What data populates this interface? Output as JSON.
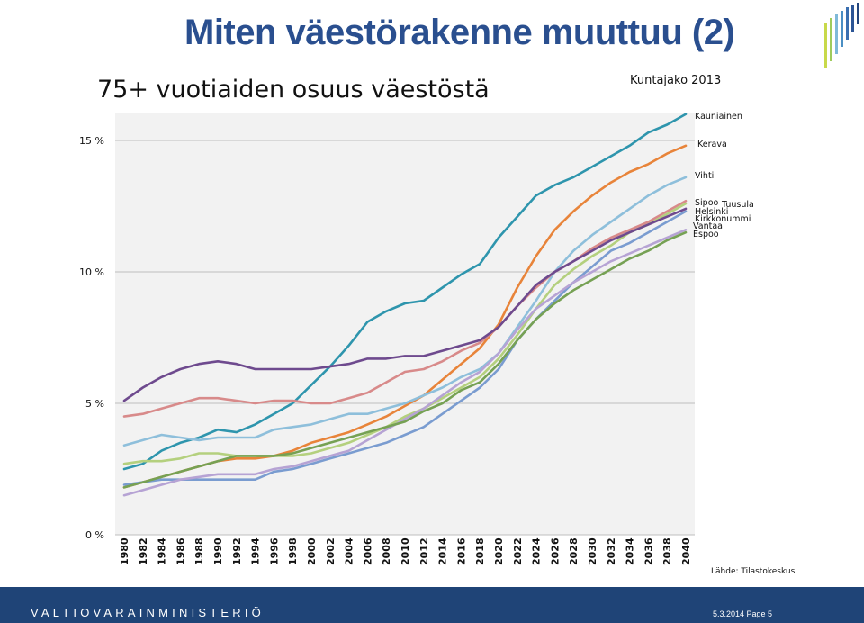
{
  "slide": {
    "title": "Miten väestörakenne muuttuu (2)",
    "source": "Lähde: Tilastokeskus",
    "footer_left": "VALTIOVARAINMINISTERIÖ",
    "footer_right": "5.3.2014 Page 5",
    "footer_color": "#1f4477",
    "title_color": "#2a4f8f"
  },
  "chart_data": {
    "type": "line",
    "title": "75+ vuotiaiden osuus väestöstä",
    "subtitle": "Kuntajako 2013",
    "xlabel": "",
    "ylabel": "",
    "ylim": [
      0,
      16
    ],
    "yticks": [
      {
        "value": 0,
        "label": "0 %"
      },
      {
        "value": 5,
        "label": "5 %"
      },
      {
        "value": 10,
        "label": "10 %"
      },
      {
        "value": 15,
        "label": "15 %"
      }
    ],
    "grid": true,
    "x": [
      1980,
      1982,
      1984,
      1986,
      1988,
      1990,
      1992,
      1994,
      1996,
      1998,
      2000,
      2002,
      2004,
      2006,
      2008,
      2010,
      2012,
      2014,
      2016,
      2018,
      2020,
      2022,
      2024,
      2026,
      2028,
      2030,
      2032,
      2034,
      2036,
      2038,
      2040
    ],
    "series": [
      {
        "name": "Kauniainen",
        "color": "#2e95ad",
        "values": [
          2.5,
          2.7,
          3.2,
          3.5,
          3.7,
          4.0,
          3.9,
          4.2,
          4.6,
          5.0,
          5.7,
          6.4,
          7.2,
          8.1,
          8.5,
          8.8,
          8.9,
          9.4,
          9.9,
          10.3,
          11.3,
          12.1,
          12.9,
          13.3,
          13.6,
          14.0,
          14.4,
          14.8,
          15.3,
          15.6,
          16.0
        ]
      },
      {
        "name": "Kerava",
        "color": "#e8843a",
        "values": [
          1.8,
          2.0,
          2.2,
          2.4,
          2.6,
          2.8,
          2.9,
          2.9,
          3.0,
          3.2,
          3.5,
          3.7,
          3.9,
          4.2,
          4.5,
          4.9,
          5.3,
          5.9,
          6.5,
          7.1,
          8.0,
          9.4,
          10.6,
          11.6,
          12.3,
          12.9,
          13.4,
          13.8,
          14.1,
          14.5,
          14.8
        ]
      },
      {
        "name": "Vihti",
        "color": "#8ebfdb",
        "values": [
          3.4,
          3.6,
          3.8,
          3.7,
          3.6,
          3.7,
          3.7,
          3.7,
          4.0,
          4.1,
          4.2,
          4.4,
          4.6,
          4.6,
          4.8,
          5.0,
          5.3,
          5.6,
          6.0,
          6.3,
          6.9,
          7.9,
          8.9,
          10.0,
          10.8,
          11.4,
          11.9,
          12.4,
          12.9,
          13.3,
          13.6
        ]
      },
      {
        "name": "Sipoo",
        "color": "#d88a8a",
        "values": [
          4.5,
          4.6,
          4.8,
          5.0,
          5.2,
          5.2,
          5.1,
          5.0,
          5.1,
          5.1,
          5.0,
          5.0,
          5.2,
          5.4,
          5.8,
          6.2,
          6.3,
          6.6,
          7.0,
          7.3,
          7.9,
          8.7,
          9.4,
          10.0,
          10.4,
          10.9,
          11.3,
          11.6,
          11.9,
          12.3,
          12.7
        ]
      },
      {
        "name": "Tuusula",
        "color": "#b4d07e",
        "values": [
          2.7,
          2.8,
          2.8,
          2.9,
          3.1,
          3.1,
          3.0,
          3.0,
          3.0,
          3.0,
          3.1,
          3.3,
          3.5,
          3.8,
          4.1,
          4.5,
          4.8,
          5.2,
          5.6,
          6.0,
          6.7,
          7.6,
          8.6,
          9.5,
          10.1,
          10.6,
          11.0,
          11.5,
          11.8,
          12.2,
          12.6
        ]
      },
      {
        "name": "Helsinki",
        "color": "#6e4a8e",
        "values": [
          5.1,
          5.6,
          6.0,
          6.3,
          6.5,
          6.6,
          6.5,
          6.3,
          6.3,
          6.3,
          6.3,
          6.4,
          6.5,
          6.7,
          6.7,
          6.8,
          6.8,
          7.0,
          7.2,
          7.4,
          7.9,
          8.7,
          9.5,
          10.0,
          10.4,
          10.8,
          11.2,
          11.5,
          11.8,
          12.1,
          12.4
        ]
      },
      {
        "name": "Kirkkonummi",
        "color": "#7a9cd0",
        "values": [
          1.9,
          2.0,
          2.1,
          2.1,
          2.1,
          2.1,
          2.1,
          2.1,
          2.4,
          2.5,
          2.7,
          2.9,
          3.1,
          3.3,
          3.5,
          3.8,
          4.1,
          4.6,
          5.1,
          5.6,
          6.3,
          7.4,
          8.2,
          8.9,
          9.6,
          10.2,
          10.8,
          11.1,
          11.5,
          11.9,
          12.3
        ]
      },
      {
        "name": "Vantaa",
        "color": "#b6a3d4",
        "values": [
          1.5,
          1.7,
          1.9,
          2.1,
          2.2,
          2.3,
          2.3,
          2.3,
          2.5,
          2.6,
          2.8,
          3.0,
          3.2,
          3.6,
          4.0,
          4.4,
          4.8,
          5.3,
          5.8,
          6.2,
          6.9,
          7.8,
          8.6,
          9.1,
          9.6,
          10.0,
          10.4,
          10.7,
          11.0,
          11.3,
          11.6
        ]
      },
      {
        "name": "Espoo",
        "color": "#76a154",
        "values": [
          1.8,
          2.0,
          2.2,
          2.4,
          2.6,
          2.8,
          3.0,
          3.0,
          3.0,
          3.1,
          3.3,
          3.5,
          3.7,
          3.9,
          4.1,
          4.3,
          4.7,
          5.0,
          5.5,
          5.8,
          6.5,
          7.4,
          8.2,
          8.8,
          9.3,
          9.7,
          10.1,
          10.5,
          10.8,
          11.2,
          11.5
        ]
      }
    ]
  }
}
